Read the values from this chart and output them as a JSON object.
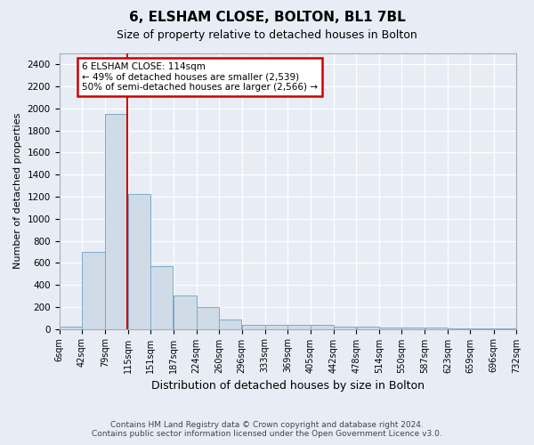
{
  "title": "6, ELSHAM CLOSE, BOLTON, BL1 7BL",
  "subtitle": "Size of property relative to detached houses in Bolton",
  "xlabel": "Distribution of detached houses by size in Bolton",
  "ylabel": "Number of detached properties",
  "annotation_title": "6 ELSHAM CLOSE: 114sqm",
  "annotation_line1": "← 49% of detached houses are smaller (2,539)",
  "annotation_line2": "50% of semi-detached houses are larger (2,566) →",
  "footer1": "Contains HM Land Registry data © Crown copyright and database right 2024.",
  "footer2": "Contains public sector information licensed under the Open Government Licence v3.0.",
  "bar_color": "#cfdce8",
  "bar_edge_color": "#7baac8",
  "red_line_x": 114,
  "categories": [
    "6sqm",
    "42sqm",
    "79sqm",
    "115sqm",
    "151sqm",
    "187sqm",
    "224sqm",
    "260sqm",
    "296sqm",
    "333sqm",
    "369sqm",
    "405sqm",
    "442sqm",
    "478sqm",
    "514sqm",
    "550sqm",
    "587sqm",
    "623sqm",
    "659sqm",
    "696sqm",
    "732sqm"
  ],
  "bar_left_edges": [
    6,
    42,
    79,
    115,
    151,
    187,
    224,
    260,
    296,
    333,
    369,
    405,
    442,
    478,
    514,
    550,
    587,
    623,
    659,
    696
  ],
  "bar_widths": [
    36,
    37,
    36,
    36,
    36,
    37,
    36,
    36,
    37,
    36,
    36,
    37,
    36,
    36,
    36,
    37,
    36,
    36,
    37,
    36
  ],
  "bar_heights": [
    20,
    700,
    1950,
    1220,
    570,
    305,
    200,
    85,
    40,
    35,
    35,
    35,
    20,
    20,
    15,
    10,
    10,
    5,
    5,
    5
  ],
  "ylim": [
    0,
    2500
  ],
  "yticks": [
    0,
    200,
    400,
    600,
    800,
    1000,
    1200,
    1400,
    1600,
    1800,
    2000,
    2200,
    2400
  ],
  "bg_color": "#e8edf5",
  "plot_bg_color": "#e8edf5",
  "grid_color": "#ffffff",
  "annotation_box_color": "#ffffff",
  "annotation_border_color": "#cc0000",
  "red_line_color": "#cc0000",
  "title_fontsize": 11,
  "subtitle_fontsize": 9,
  "ylabel_fontsize": 8,
  "xlabel_fontsize": 9
}
